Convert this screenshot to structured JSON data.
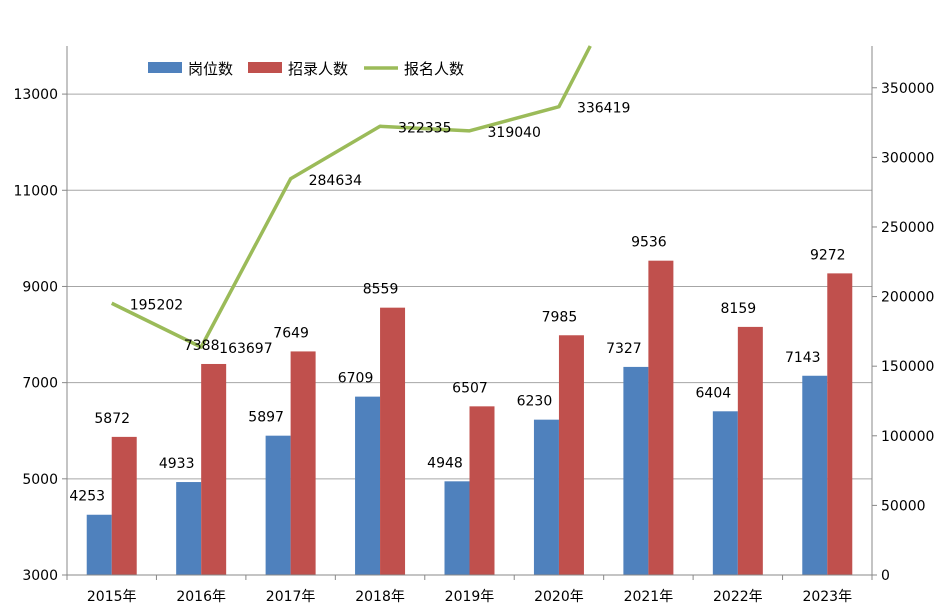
{
  "chart_data": {
    "type": "bar",
    "categories": [
      "2015年",
      "2016年",
      "2017年",
      "2018年",
      "2019年",
      "2020年",
      "2021年",
      "2022年",
      "2023年"
    ],
    "series": [
      {
        "name": "岗位数",
        "type": "bar",
        "axis": "left",
        "color": "#4f81bd",
        "values": [
          4253,
          4933,
          5897,
          6709,
          4948,
          6230,
          7327,
          6404,
          7143
        ]
      },
      {
        "name": "招录人数",
        "type": "bar",
        "axis": "left",
        "color": "#c0504d",
        "values": [
          5872,
          7388,
          7649,
          8559,
          6507,
          7985,
          9536,
          8159,
          9272
        ]
      },
      {
        "name": "报名人数",
        "type": "line",
        "axis": "right",
        "color": "#9bbb59",
        "values": [
          195202,
          163697,
          284634,
          322335,
          319040,
          336419,
          null,
          null,
          null
        ],
        "labeled": [
          195202,
          163697,
          284634,
          322335,
          319040,
          336419
        ]
      }
    ],
    "y_left": {
      "min": 3000,
      "max": 14000,
      "ticks": [
        3000,
        5000,
        7000,
        9000,
        11000,
        13000
      ]
    },
    "y_right": {
      "min": 0,
      "max": 380000,
      "ticks": [
        0,
        50000,
        100000,
        150000,
        200000,
        250000,
        300000,
        350000
      ]
    },
    "line_exit": {
      "from_index": 5,
      "value": 380000,
      "fraction": 0.35
    },
    "grid": true,
    "legend_position": "top-left"
  }
}
